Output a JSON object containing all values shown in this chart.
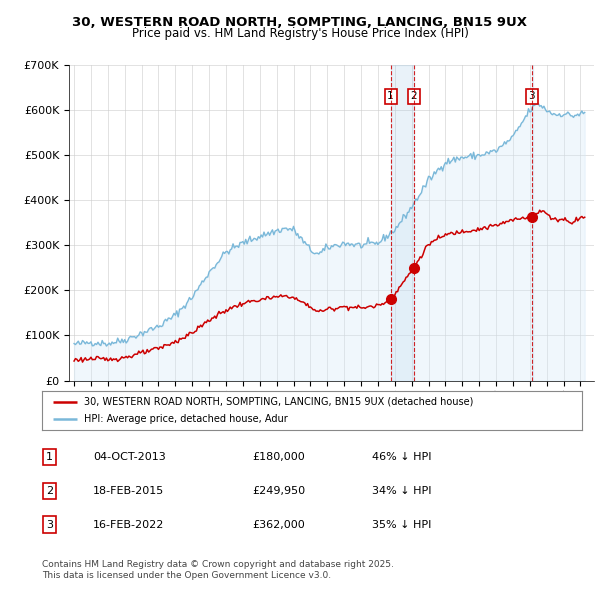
{
  "title_line1": "30, WESTERN ROAD NORTH, SOMPTING, LANCING, BN15 9UX",
  "title_line2": "Price paid vs. HM Land Registry's House Price Index (HPI)",
  "ylim": [
    0,
    700000
  ],
  "yticks": [
    0,
    100000,
    200000,
    300000,
    400000,
    500000,
    600000,
    700000
  ],
  "ytick_labels": [
    "£0",
    "£100K",
    "£200K",
    "£300K",
    "£400K",
    "£500K",
    "£600K",
    "£700K"
  ],
  "xlim_start": 1994.7,
  "xlim_end": 2025.8,
  "sale_dates": [
    2013.75,
    2015.12,
    2022.12
  ],
  "sale_prices": [
    180000,
    249950,
    362000
  ],
  "sale_labels": [
    "1",
    "2",
    "3"
  ],
  "legend_line1": "30, WESTERN ROAD NORTH, SOMPTING, LANCING, BN15 9UX (detached house)",
  "legend_line2": "HPI: Average price, detached house, Adur",
  "table_rows": [
    [
      "1",
      "04-OCT-2013",
      "£180,000",
      "46% ↓ HPI"
    ],
    [
      "2",
      "18-FEB-2015",
      "£249,950",
      "34% ↓ HPI"
    ],
    [
      "3",
      "16-FEB-2022",
      "£362,000",
      "35% ↓ HPI"
    ]
  ],
  "footnote_line1": "Contains HM Land Registry data © Crown copyright and database right 2025.",
  "footnote_line2": "This data is licensed under the Open Government Licence v3.0.",
  "hpi_color": "#7ab8d9",
  "hpi_fill_color": "#d6eaf8",
  "sale_color": "#cc0000",
  "vline_color_solid": "#aacce8",
  "vline_color_dashed": "#cc0000",
  "background_color": "#ffffff",
  "plot_bg_color": "#ffffff",
  "grid_color": "#cccccc",
  "hpi_data_years": [
    1995.0,
    1995.083,
    1995.167,
    1995.25,
    1995.333,
    1995.417,
    1995.5,
    1995.583,
    1995.667,
    1995.75,
    1995.833,
    1995.917,
    1996.0,
    1996.083,
    1996.167,
    1996.25,
    1996.333,
    1996.417,
    1996.5,
    1996.583,
    1996.667,
    1996.75,
    1996.833,
    1996.917,
    1997.0,
    1997.083,
    1997.167,
    1997.25,
    1997.333,
    1997.417,
    1997.5,
    1997.583,
    1997.667,
    1997.75,
    1997.833,
    1997.917,
    1998.0,
    1998.083,
    1998.167,
    1998.25,
    1998.333,
    1998.417,
    1998.5,
    1998.583,
    1998.667,
    1998.75,
    1998.833,
    1998.917,
    1999.0,
    1999.083,
    1999.167,
    1999.25,
    1999.333,
    1999.417,
    1999.5,
    1999.583,
    1999.667,
    1999.75,
    1999.833,
    1999.917,
    2000.0,
    2000.083,
    2000.167,
    2000.25,
    2000.333,
    2000.417,
    2000.5,
    2000.583,
    2000.667,
    2000.75,
    2000.833,
    2000.917,
    2001.0,
    2001.083,
    2001.167,
    2001.25,
    2001.333,
    2001.417,
    2001.5,
    2001.583,
    2001.667,
    2001.75,
    2001.833,
    2001.917,
    2002.0,
    2002.083,
    2002.167,
    2002.25,
    2002.333,
    2002.417,
    2002.5,
    2002.583,
    2002.667,
    2002.75,
    2002.833,
    2002.917,
    2003.0,
    2003.083,
    2003.167,
    2003.25,
    2003.333,
    2003.417,
    2003.5,
    2003.583,
    2003.667,
    2003.75,
    2003.833,
    2003.917,
    2004.0,
    2004.083,
    2004.167,
    2004.25,
    2004.333,
    2004.417,
    2004.5,
    2004.583,
    2004.667,
    2004.75,
    2004.833,
    2004.917,
    2005.0,
    2005.083,
    2005.167,
    2005.25,
    2005.333,
    2005.417,
    2005.5,
    2005.583,
    2005.667,
    2005.75,
    2005.833,
    2005.917,
    2006.0,
    2006.083,
    2006.167,
    2006.25,
    2006.333,
    2006.417,
    2006.5,
    2006.583,
    2006.667,
    2006.75,
    2006.833,
    2006.917,
    2007.0,
    2007.083,
    2007.167,
    2007.25,
    2007.333,
    2007.417,
    2007.5,
    2007.583,
    2007.667,
    2007.75,
    2007.833,
    2007.917,
    2008.0,
    2008.083,
    2008.167,
    2008.25,
    2008.333,
    2008.417,
    2008.5,
    2008.583,
    2008.667,
    2008.75,
    2008.833,
    2008.917,
    2009.0,
    2009.083,
    2009.167,
    2009.25,
    2009.333,
    2009.417,
    2009.5,
    2009.583,
    2009.667,
    2009.75,
    2009.833,
    2009.917,
    2010.0,
    2010.083,
    2010.167,
    2010.25,
    2010.333,
    2010.417,
    2010.5,
    2010.583,
    2010.667,
    2010.75,
    2010.833,
    2010.917,
    2011.0,
    2011.083,
    2011.167,
    2011.25,
    2011.333,
    2011.417,
    2011.5,
    2011.583,
    2011.667,
    2011.75,
    2011.833,
    2011.917,
    2012.0,
    2012.083,
    2012.167,
    2012.25,
    2012.333,
    2012.417,
    2012.5,
    2012.583,
    2012.667,
    2012.75,
    2012.833,
    2012.917,
    2013.0,
    2013.083,
    2013.167,
    2013.25,
    2013.333,
    2013.417,
    2013.5,
    2013.583,
    2013.667,
    2013.75,
    2013.833,
    2013.917,
    2014.0,
    2014.083,
    2014.167,
    2014.25,
    2014.333,
    2014.417,
    2014.5,
    2014.583,
    2014.667,
    2014.75,
    2014.833,
    2014.917,
    2015.0,
    2015.083,
    2015.167,
    2015.25,
    2015.333,
    2015.417,
    2015.5,
    2015.583,
    2015.667,
    2015.75,
    2015.833,
    2015.917,
    2016.0,
    2016.083,
    2016.167,
    2016.25,
    2016.333,
    2016.417,
    2016.5,
    2016.583,
    2016.667,
    2016.75,
    2016.833,
    2016.917,
    2017.0,
    2017.083,
    2017.167,
    2017.25,
    2017.333,
    2017.417,
    2017.5,
    2017.583,
    2017.667,
    2017.75,
    2017.833,
    2017.917,
    2018.0,
    2018.083,
    2018.167,
    2018.25,
    2018.333,
    2018.417,
    2018.5,
    2018.583,
    2018.667,
    2018.75,
    2018.833,
    2018.917,
    2019.0,
    2019.083,
    2019.167,
    2019.25,
    2019.333,
    2019.417,
    2019.5,
    2019.583,
    2019.667,
    2019.75,
    2019.833,
    2019.917,
    2020.0,
    2020.083,
    2020.167,
    2020.25,
    2020.333,
    2020.417,
    2020.5,
    2020.583,
    2020.667,
    2020.75,
    2020.833,
    2020.917,
    2021.0,
    2021.083,
    2021.167,
    2021.25,
    2021.333,
    2021.417,
    2021.5,
    2021.583,
    2021.667,
    2021.75,
    2021.833,
    2021.917,
    2022.0,
    2022.083,
    2022.167,
    2022.25,
    2022.333,
    2022.417,
    2022.5,
    2022.583,
    2022.667,
    2022.75,
    2022.833,
    2022.917,
    2023.0,
    2023.083,
    2023.167,
    2023.25,
    2023.333,
    2023.417,
    2023.5,
    2023.583,
    2023.667,
    2023.75,
    2023.833,
    2023.917,
    2024.0,
    2024.083,
    2024.167,
    2024.25,
    2024.333,
    2024.417,
    2024.5,
    2024.583,
    2024.667,
    2024.75,
    2024.833,
    2024.917,
    2025.0,
    2025.083,
    2025.167,
    2025.25
  ],
  "hpi_seed": 42,
  "prop_seed": 123
}
